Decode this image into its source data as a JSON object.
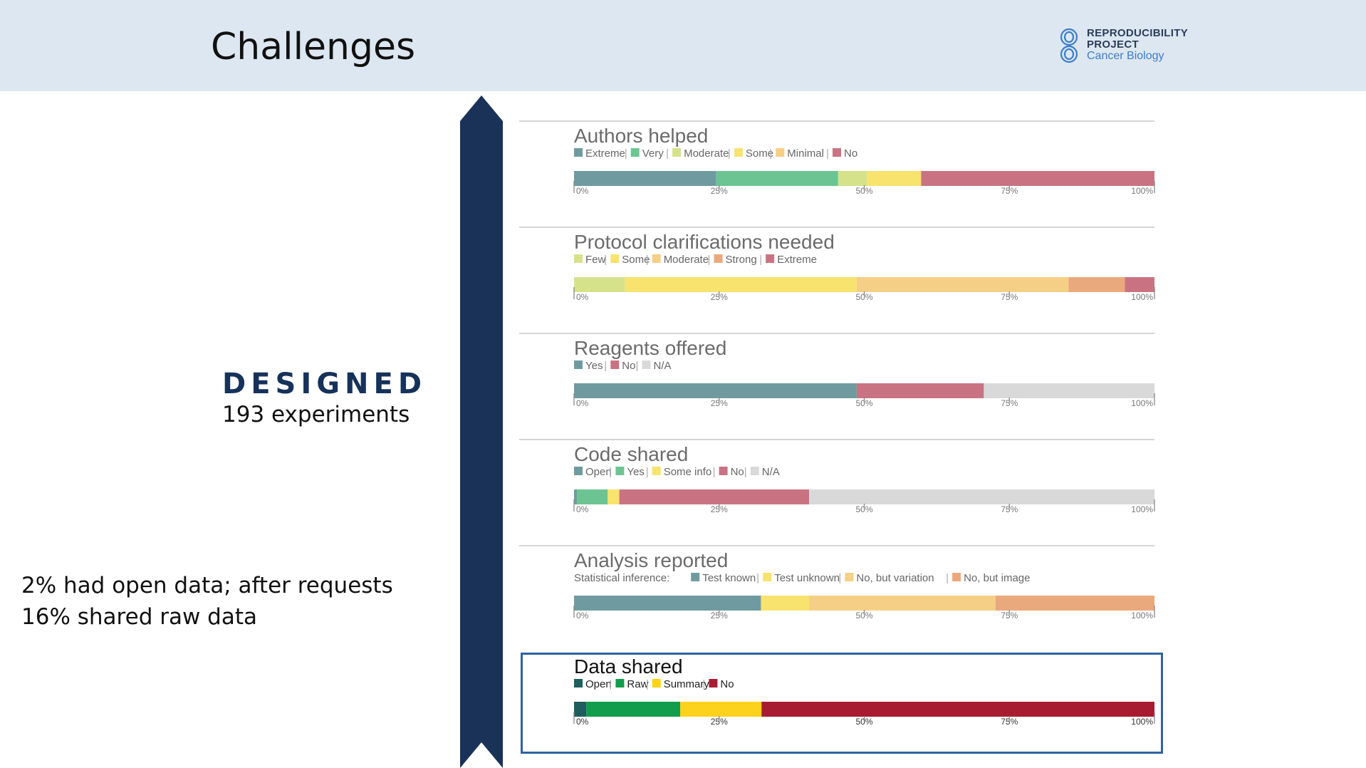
{
  "slide": {
    "title": "Challenges",
    "logo": {
      "line1": "REPRODUCIBILITY",
      "line2": "PROJECT",
      "line3": "Cancer Biology",
      "icon": "rpcb-logo-icon"
    },
    "designed_label": "DESIGNED",
    "experiments_count": "193 experiments",
    "data_note": "2% had open data; after requests 16% shared raw data",
    "colors": {
      "header_bg": "#dde7f1",
      "arrow": "#1a3258",
      "highlight_border": "#2e62a3"
    }
  },
  "chart_data": [
    {
      "type": "bar",
      "orientation": "horizontal",
      "stacked": true,
      "title": "Authors helped",
      "legend_prefix": "",
      "categories": [
        "Extreme",
        "Very",
        "Moderate",
        "Some",
        "Minimal",
        "No"
      ],
      "values": [
        24.5,
        21,
        5,
        9.3,
        0,
        40.2
      ],
      "colors": [
        "#6f9ba0",
        "#6cc492",
        "#d6e28a",
        "#f7e36d",
        "#f5cf85",
        "#c97382"
      ],
      "xlim": [
        0,
        100
      ],
      "ticks": [
        "0%",
        "25%",
        "50%",
        "75%",
        "100%"
      ],
      "highlighted": false
    },
    {
      "type": "bar",
      "orientation": "horizontal",
      "stacked": true,
      "title": "Protocol clarifications needed",
      "legend_prefix": "",
      "categories": [
        "Few",
        "Some",
        "Moderate",
        "Strong",
        "Extreme"
      ],
      "values": [
        8.8,
        39.9,
        36.5,
        9.7,
        5.1
      ],
      "colors": [
        "#d6e28a",
        "#f7e36d",
        "#f5cf85",
        "#eaa97c",
        "#c97382"
      ],
      "xlim": [
        0,
        100
      ],
      "ticks": [
        "0%",
        "25%",
        "50%",
        "75%",
        "100%"
      ],
      "highlighted": false
    },
    {
      "type": "bar",
      "orientation": "horizontal",
      "stacked": true,
      "title": "Reagents offered",
      "legend_prefix": "",
      "categories": [
        "Yes",
        "No",
        "N/A"
      ],
      "values": [
        48.7,
        21.9,
        29.4
      ],
      "colors": [
        "#6f9ba0",
        "#c97382",
        "#d9d9d9"
      ],
      "xlim": [
        0,
        100
      ],
      "ticks": [
        "0%",
        "25%",
        "50%",
        "75%",
        "100%"
      ],
      "highlighted": false
    },
    {
      "type": "bar",
      "orientation": "horizontal",
      "stacked": true,
      "title": "Code shared",
      "legend_prefix": "",
      "categories": [
        "Open",
        "Yes",
        "Some info",
        "No",
        "N/A"
      ],
      "values": [
        0.5,
        5.3,
        2,
        32.7,
        59.5
      ],
      "colors": [
        "#6f9ba0",
        "#6cc492",
        "#f7e36d",
        "#c97382",
        "#d9d9d9"
      ],
      "xlim": [
        0,
        100
      ],
      "ticks": [
        "0%",
        "25%",
        "50%",
        "75%",
        "100%"
      ],
      "highlighted": false
    },
    {
      "type": "bar",
      "orientation": "horizontal",
      "stacked": true,
      "title": "Analysis reported",
      "legend_prefix": "Statistical inference:",
      "categories": [
        "Test known",
        "Test unknown",
        "No, but variation",
        "No, but image"
      ],
      "values": [
        32.2,
        8.3,
        32.1,
        27.4
      ],
      "colors": [
        "#6f9ba0",
        "#f7e36d",
        "#f5cf85",
        "#eaa97c"
      ],
      "xlim": [
        0,
        100
      ],
      "ticks": [
        "0%",
        "25%",
        "50%",
        "75%",
        "100%"
      ],
      "highlighted": false
    },
    {
      "type": "bar",
      "orientation": "horizontal",
      "stacked": true,
      "title": "Data shared",
      "legend_prefix": "",
      "categories": [
        "Open",
        "Raw",
        "Summary",
        "No"
      ],
      "values": [
        2.1,
        16.2,
        14,
        67.7
      ],
      "colors": [
        "#1e5e5e",
        "#129d4c",
        "#fcd21c",
        "#a81c32"
      ],
      "xlim": [
        0,
        100
      ],
      "ticks": [
        "0%",
        "25%",
        "50%",
        "75%",
        "100%"
      ],
      "highlighted": true
    }
  ]
}
